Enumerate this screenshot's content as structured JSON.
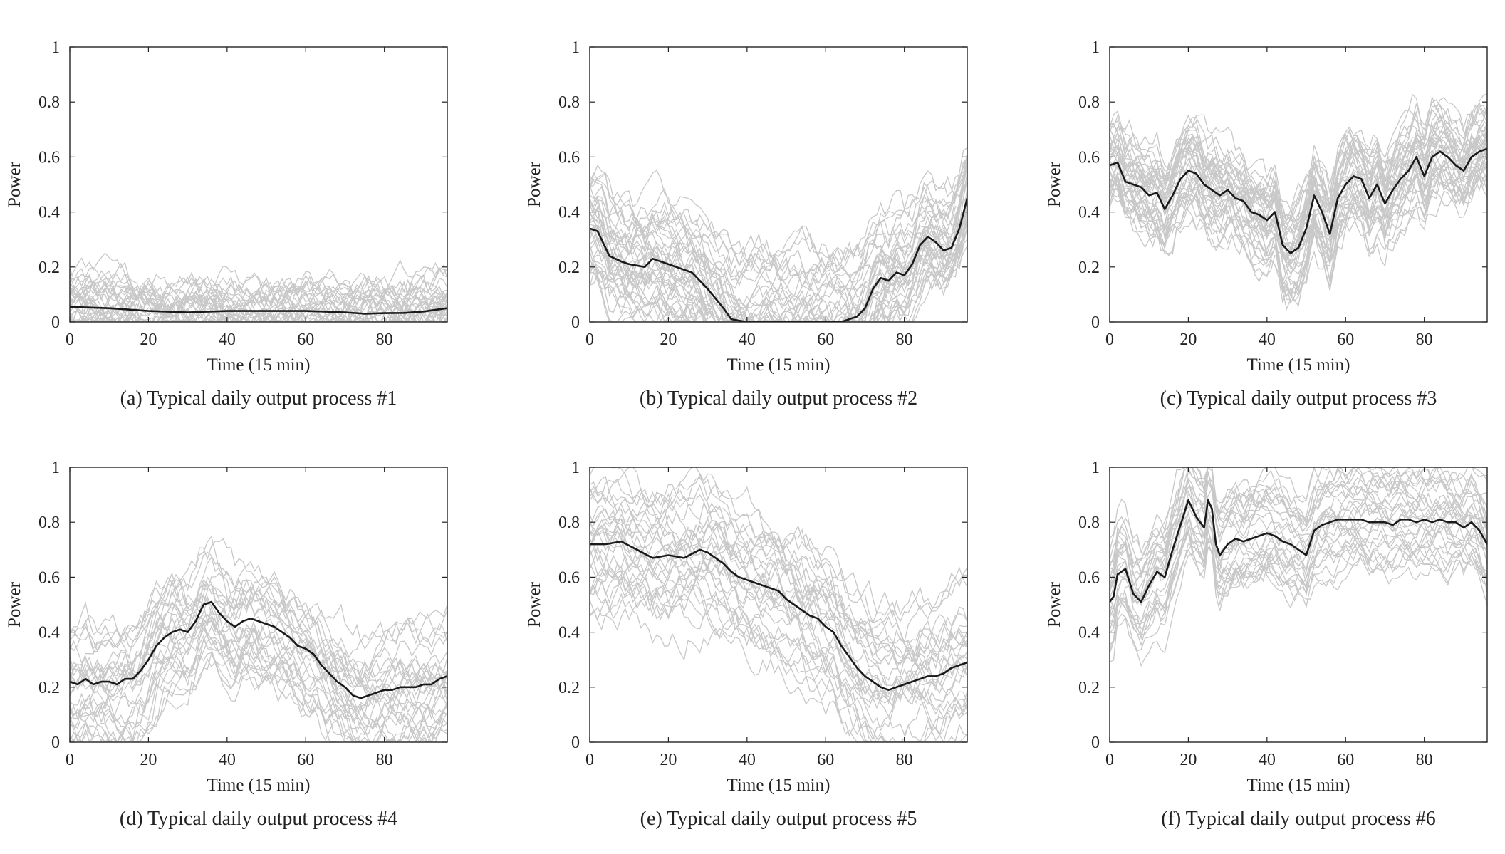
{
  "chart_data": [
    {
      "type": "line",
      "caption": "(a) Typical daily output process #1",
      "xlabel": "Time (15 min)",
      "ylabel": "Power",
      "xticks": [
        "0",
        "20",
        "40",
        "60",
        "80"
      ],
      "yticks": [
        "0",
        "0.2",
        "0.4",
        "0.6",
        "0.8",
        "1"
      ],
      "xlim": [
        0,
        96
      ],
      "ylim": [
        0,
        1
      ],
      "grid": false,
      "colors": {
        "samples": "#c8c8c8",
        "typical": "#1a1a1a"
      },
      "background_samples": {
        "count": 40,
        "base_level": 0.12,
        "spread": 0.1,
        "noise": 0.05
      },
      "typical_curve": {
        "x": [
          0,
          10,
          20,
          30,
          40,
          50,
          60,
          70,
          75,
          80,
          85,
          90,
          96
        ],
        "y": [
          0.055,
          0.05,
          0.04,
          0.035,
          0.04,
          0.04,
          0.04,
          0.035,
          0.03,
          0.032,
          0.033,
          0.038,
          0.05
        ]
      }
    },
    {
      "type": "line",
      "caption": "(b) Typical daily output process #2",
      "xlabel": "Time (15 min)",
      "ylabel": "Power",
      "xticks": [
        "0",
        "20",
        "40",
        "60",
        "80"
      ],
      "yticks": [
        "0",
        "0.2",
        "0.4",
        "0.6",
        "0.8",
        "1"
      ],
      "xlim": [
        0,
        96
      ],
      "ylim": [
        0,
        1
      ],
      "grid": false,
      "colors": {
        "samples": "#c8c8c8",
        "typical": "#1a1a1a"
      },
      "background_samples": {
        "count": 40,
        "base_level": 0.3,
        "spread": 0.18,
        "noise": 0.06
      },
      "typical_curve": {
        "x": [
          0,
          2,
          5,
          8,
          10,
          14,
          16,
          20,
          24,
          26,
          30,
          34,
          36,
          40,
          45,
          50,
          55,
          60,
          64,
          66,
          68,
          70,
          72,
          74,
          76,
          78,
          80,
          82,
          84,
          86,
          88,
          90,
          92,
          94,
          96
        ],
        "y": [
          0.34,
          0.33,
          0.24,
          0.22,
          0.21,
          0.2,
          0.23,
          0.21,
          0.19,
          0.18,
          0.12,
          0.05,
          0.01,
          0.0,
          0.0,
          0.0,
          0.0,
          0.0,
          0.0,
          0.01,
          0.02,
          0.05,
          0.12,
          0.16,
          0.15,
          0.18,
          0.17,
          0.21,
          0.28,
          0.31,
          0.29,
          0.26,
          0.27,
          0.34,
          0.45
        ]
      }
    },
    {
      "type": "line",
      "caption": "(c) Typical daily output process #3",
      "xlabel": "Time (15 min)",
      "ylabel": "Power",
      "xticks": [
        "0",
        "20",
        "40",
        "60",
        "80"
      ],
      "yticks": [
        "0",
        "0.2",
        "0.4",
        "0.6",
        "0.8",
        "1"
      ],
      "xlim": [
        0,
        96
      ],
      "ylim": [
        0,
        1
      ],
      "grid": false,
      "colors": {
        "samples": "#c8c8c8",
        "typical": "#1a1a1a"
      },
      "background_samples": {
        "count": 40,
        "base_level": 0.5,
        "spread": 0.15,
        "noise": 0.06
      },
      "typical_curve": {
        "x": [
          0,
          2,
          4,
          6,
          8,
          10,
          12,
          14,
          16,
          18,
          20,
          22,
          24,
          26,
          28,
          30,
          32,
          34,
          36,
          38,
          40,
          42,
          44,
          46,
          48,
          50,
          52,
          54,
          56,
          58,
          60,
          62,
          64,
          66,
          68,
          70,
          72,
          74,
          76,
          78,
          80,
          82,
          84,
          86,
          88,
          90,
          92,
          94,
          96
        ],
        "y": [
          0.57,
          0.58,
          0.51,
          0.5,
          0.49,
          0.46,
          0.47,
          0.41,
          0.46,
          0.52,
          0.55,
          0.54,
          0.5,
          0.48,
          0.46,
          0.48,
          0.45,
          0.44,
          0.4,
          0.39,
          0.37,
          0.4,
          0.28,
          0.25,
          0.27,
          0.34,
          0.46,
          0.4,
          0.32,
          0.45,
          0.5,
          0.53,
          0.52,
          0.45,
          0.5,
          0.43,
          0.48,
          0.52,
          0.55,
          0.6,
          0.53,
          0.6,
          0.62,
          0.6,
          0.57,
          0.55,
          0.6,
          0.62,
          0.63
        ]
      }
    },
    {
      "type": "line",
      "caption": "(d) Typical daily output process #4",
      "xlabel": "Time (15 min)",
      "ylabel": "Power",
      "xticks": [
        "0",
        "20",
        "40",
        "60",
        "80"
      ],
      "yticks": [
        "0",
        "0.2",
        "0.4",
        "0.6",
        "0.8",
        "1"
      ],
      "xlim": [
        0,
        96
      ],
      "ylim": [
        0,
        1
      ],
      "grid": false,
      "colors": {
        "samples": "#c8c8c8",
        "typical": "#1a1a1a"
      },
      "background_samples": {
        "count": 30,
        "base_level": 0.3,
        "spread": 0.2,
        "noise": 0.06
      },
      "typical_curve": {
        "x": [
          0,
          2,
          4,
          6,
          8,
          10,
          12,
          14,
          16,
          18,
          20,
          22,
          24,
          26,
          28,
          30,
          32,
          34,
          36,
          38,
          40,
          42,
          44,
          46,
          48,
          50,
          52,
          54,
          56,
          58,
          60,
          62,
          64,
          66,
          68,
          70,
          72,
          74,
          76,
          78,
          80,
          82,
          84,
          86,
          88,
          90,
          92,
          94,
          96
        ],
        "y": [
          0.22,
          0.21,
          0.23,
          0.21,
          0.22,
          0.22,
          0.21,
          0.23,
          0.23,
          0.26,
          0.3,
          0.35,
          0.38,
          0.4,
          0.41,
          0.4,
          0.44,
          0.5,
          0.51,
          0.47,
          0.44,
          0.42,
          0.44,
          0.45,
          0.44,
          0.43,
          0.42,
          0.4,
          0.38,
          0.35,
          0.34,
          0.32,
          0.28,
          0.25,
          0.22,
          0.2,
          0.17,
          0.16,
          0.17,
          0.18,
          0.19,
          0.19,
          0.2,
          0.2,
          0.2,
          0.21,
          0.21,
          0.23,
          0.24
        ]
      }
    },
    {
      "type": "line",
      "caption": "(e) Typical daily output process #5",
      "xlabel": "Time (15 min)",
      "ylabel": "Power",
      "xticks": [
        "0",
        "20",
        "40",
        "60",
        "80"
      ],
      "yticks": [
        "0",
        "0.2",
        "0.4",
        "0.6",
        "0.8",
        "1"
      ],
      "xlim": [
        0,
        96
      ],
      "ylim": [
        0,
        1
      ],
      "grid": false,
      "colors": {
        "samples": "#c8c8c8",
        "typical": "#1a1a1a"
      },
      "background_samples": {
        "count": 30,
        "base_level": 0.6,
        "spread": 0.25,
        "noise": 0.06
      },
      "typical_curve": {
        "x": [
          0,
          4,
          8,
          12,
          16,
          20,
          24,
          28,
          30,
          34,
          36,
          38,
          40,
          44,
          48,
          50,
          52,
          54,
          56,
          58,
          60,
          62,
          64,
          66,
          68,
          70,
          72,
          74,
          76,
          78,
          80,
          82,
          84,
          86,
          88,
          90,
          92,
          94,
          96
        ],
        "y": [
          0.72,
          0.72,
          0.73,
          0.7,
          0.67,
          0.68,
          0.67,
          0.7,
          0.69,
          0.65,
          0.62,
          0.6,
          0.59,
          0.57,
          0.55,
          0.52,
          0.5,
          0.48,
          0.46,
          0.45,
          0.42,
          0.4,
          0.35,
          0.31,
          0.27,
          0.24,
          0.22,
          0.2,
          0.19,
          0.2,
          0.21,
          0.22,
          0.23,
          0.24,
          0.24,
          0.25,
          0.27,
          0.28,
          0.29
        ]
      }
    },
    {
      "type": "line",
      "caption": "(f) Typical daily output process #6",
      "xlabel": "Time (15 min)",
      "ylabel": "Power",
      "xticks": [
        "0",
        "20",
        "40",
        "60",
        "80"
      ],
      "yticks": [
        "0",
        "0.2",
        "0.4",
        "0.6",
        "0.8",
        "1"
      ],
      "xlim": [
        0,
        96
      ],
      "ylim": [
        0,
        1
      ],
      "grid": false,
      "colors": {
        "samples": "#c8c8c8",
        "typical": "#1a1a1a"
      },
      "background_samples": {
        "count": 30,
        "base_level": 0.75,
        "spread": 0.18,
        "noise": 0.05
      },
      "typical_curve": {
        "x": [
          0,
          1,
          2,
          4,
          6,
          8,
          10,
          12,
          14,
          16,
          18,
          20,
          22,
          24,
          25,
          26,
          27,
          28,
          30,
          32,
          34,
          36,
          38,
          40,
          42,
          44,
          46,
          48,
          50,
          52,
          54,
          56,
          58,
          60,
          62,
          64,
          66,
          68,
          70,
          72,
          74,
          76,
          78,
          80,
          82,
          84,
          86,
          88,
          90,
          92,
          94,
          96
        ],
        "y": [
          0.51,
          0.53,
          0.61,
          0.63,
          0.54,
          0.51,
          0.57,
          0.62,
          0.6,
          0.7,
          0.79,
          0.88,
          0.82,
          0.78,
          0.88,
          0.85,
          0.72,
          0.68,
          0.72,
          0.74,
          0.73,
          0.74,
          0.75,
          0.76,
          0.75,
          0.73,
          0.72,
          0.7,
          0.68,
          0.77,
          0.79,
          0.8,
          0.81,
          0.81,
          0.81,
          0.81,
          0.8,
          0.8,
          0.8,
          0.79,
          0.81,
          0.81,
          0.8,
          0.81,
          0.8,
          0.81,
          0.8,
          0.8,
          0.78,
          0.8,
          0.77,
          0.72
        ]
      }
    }
  ]
}
